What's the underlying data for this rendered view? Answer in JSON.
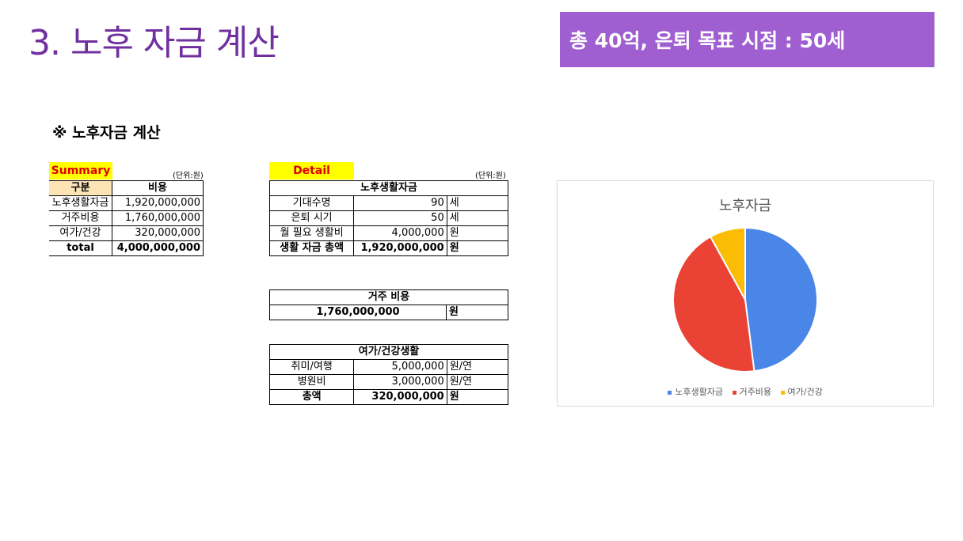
{
  "slide_title": "3. 노후 자금 계산",
  "goal_banner": "총 40억, 은퇴 목표 시점 : 50세",
  "section_heading": "※ 노후자금 계산",
  "summary": {
    "tag": "Summary",
    "unit": "(단위:원)",
    "header": [
      "구분",
      "비용"
    ],
    "rows": [
      {
        "label": "노후생활자금",
        "value": "1,920,000,000"
      },
      {
        "label": "거주비용",
        "value": "1,760,000,000"
      },
      {
        "label": "여가/건강",
        "value": "320,000,000"
      }
    ],
    "total_label": "total",
    "total_value": "4,000,000,000"
  },
  "detail": {
    "tag": "Detail",
    "unit": "(단위:원)",
    "living": {
      "title": "노후생활자금",
      "rows": [
        {
          "label": "기대수명",
          "value": "90",
          "unit": "세"
        },
        {
          "label": "은퇴 시기",
          "value": "50",
          "unit": "세"
        },
        {
          "label": "월 필요 생활비",
          "value": "4,000,000",
          "unit": "원"
        },
        {
          "label": "생활 자금 총액",
          "value": "1,920,000,000",
          "unit": "원"
        }
      ]
    },
    "housing": {
      "title": "거주 비용",
      "value": "1,760,000,000",
      "unit": "원"
    },
    "leisure": {
      "title": "여가/건강생활",
      "rows": [
        {
          "label": "취미/여행",
          "value": "5,000,000",
          "unit": "원/연"
        },
        {
          "label": "병원비",
          "value": "3,000,000",
          "unit": "원/연"
        },
        {
          "label": "총액",
          "value": "320,000,000",
          "unit": "원"
        }
      ]
    }
  },
  "chart_data": {
    "type": "pie",
    "title": "노후자금",
    "categories": [
      "노후생활자금",
      "거주비용",
      "여가/건강"
    ],
    "values": [
      1920000000,
      1760000000,
      320000000
    ],
    "colors": [
      "#4a86e8",
      "#ea4335",
      "#fbbc04"
    ],
    "legend_position": "bottom"
  }
}
